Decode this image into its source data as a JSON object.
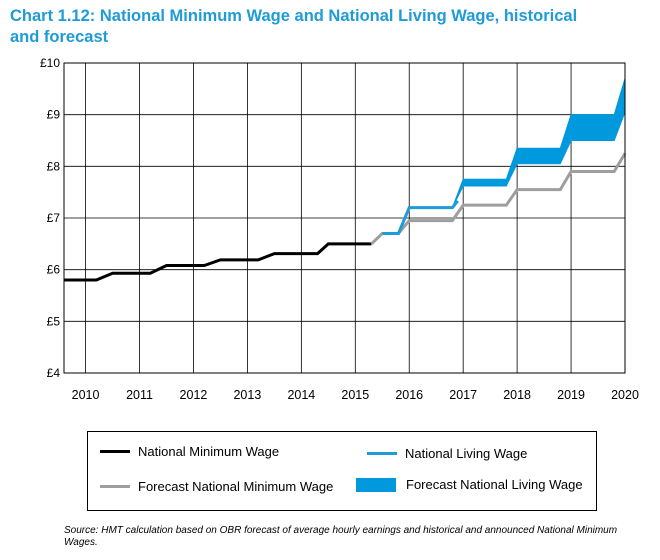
{
  "title": {
    "line1": "Chart 1.12: National Minimum Wage and National Living Wage, historical",
    "line2": "and forecast"
  },
  "colors": {
    "title": "#1f9bd7",
    "nmw": "#000000",
    "nlw": "#1f9bd7",
    "forecast_nmw": "#9e9e9e",
    "forecast_nlw": "#0099dd",
    "grid": "#000000"
  },
  "legend": {
    "nmw": "National Minimum Wage",
    "nlw": "National Living Wage",
    "forecast_nmw": "Forecast National Minimum Wage",
    "forecast_nlw": "Forecast National Living Wage"
  },
  "source": "Source: HMT calculation based on OBR forecast of average hourly earnings and historical and announced National Minimum Wages.",
  "chart_data": {
    "type": "line",
    "xlim": [
      2009.6,
      2020.0
    ],
    "ylim": [
      4,
      10
    ],
    "x_ticks": [
      2010,
      2011,
      2012,
      2013,
      2014,
      2015,
      2016,
      2017,
      2018,
      2019,
      2020
    ],
    "y_ticks": [
      {
        "value": 4,
        "label": "£4"
      },
      {
        "value": 5,
        "label": "£5"
      },
      {
        "value": 6,
        "label": "£6"
      },
      {
        "value": 7,
        "label": "£7"
      },
      {
        "value": 8,
        "label": "£8"
      },
      {
        "value": 9,
        "label": "£9"
      },
      {
        "value": 10,
        "label": "£10"
      }
    ],
    "grid": true,
    "series": [
      {
        "name": "National Minimum Wage",
        "key": "nmw",
        "style": "line",
        "points": [
          [
            2009.6,
            5.8
          ],
          [
            2010.2,
            5.8
          ],
          [
            2010.5,
            5.93
          ],
          [
            2011.2,
            5.93
          ],
          [
            2011.5,
            6.08
          ],
          [
            2012.2,
            6.08
          ],
          [
            2012.5,
            6.19
          ],
          [
            2013.2,
            6.19
          ],
          [
            2013.5,
            6.31
          ],
          [
            2014.3,
            6.31
          ],
          [
            2014.5,
            6.5
          ],
          [
            2015.3,
            6.5
          ]
        ]
      },
      {
        "name": "Forecast National Minimum Wage",
        "key": "forecast_nmw",
        "style": "line",
        "points": [
          [
            2015.3,
            6.5
          ],
          [
            2015.5,
            6.7
          ],
          [
            2015.8,
            6.7
          ],
          [
            2016.0,
            6.95
          ],
          [
            2016.8,
            6.95
          ],
          [
            2017.0,
            7.25
          ],
          [
            2017.8,
            7.25
          ],
          [
            2018.0,
            7.55
          ],
          [
            2018.8,
            7.55
          ],
          [
            2019.0,
            7.9
          ],
          [
            2019.8,
            7.9
          ],
          [
            2020.0,
            8.25
          ]
        ]
      },
      {
        "name": "National Living Wage",
        "key": "nlw",
        "style": "line",
        "points": [
          [
            2015.5,
            6.7
          ],
          [
            2015.8,
            6.7
          ],
          [
            2016.0,
            7.2
          ],
          [
            2016.8,
            7.2
          ],
          [
            2016.9,
            7.33
          ]
        ]
      },
      {
        "name": "Forecast National Living Wage",
        "key": "forecast_nlw",
        "style": "band",
        "upper": [
          [
            2016.8,
            7.2
          ],
          [
            2017.0,
            7.75
          ],
          [
            2017.8,
            7.75
          ],
          [
            2018.0,
            8.35
          ],
          [
            2018.8,
            8.35
          ],
          [
            2019.0,
            9.0
          ],
          [
            2019.8,
            9.0
          ],
          [
            2020.0,
            9.7
          ]
        ],
        "lower": [
          [
            2016.8,
            7.2
          ],
          [
            2017.0,
            7.62
          ],
          [
            2017.8,
            7.62
          ],
          [
            2018.0,
            8.05
          ],
          [
            2018.8,
            8.05
          ],
          [
            2019.0,
            8.5
          ],
          [
            2019.8,
            8.5
          ],
          [
            2020.0,
            9.05
          ]
        ]
      }
    ]
  }
}
